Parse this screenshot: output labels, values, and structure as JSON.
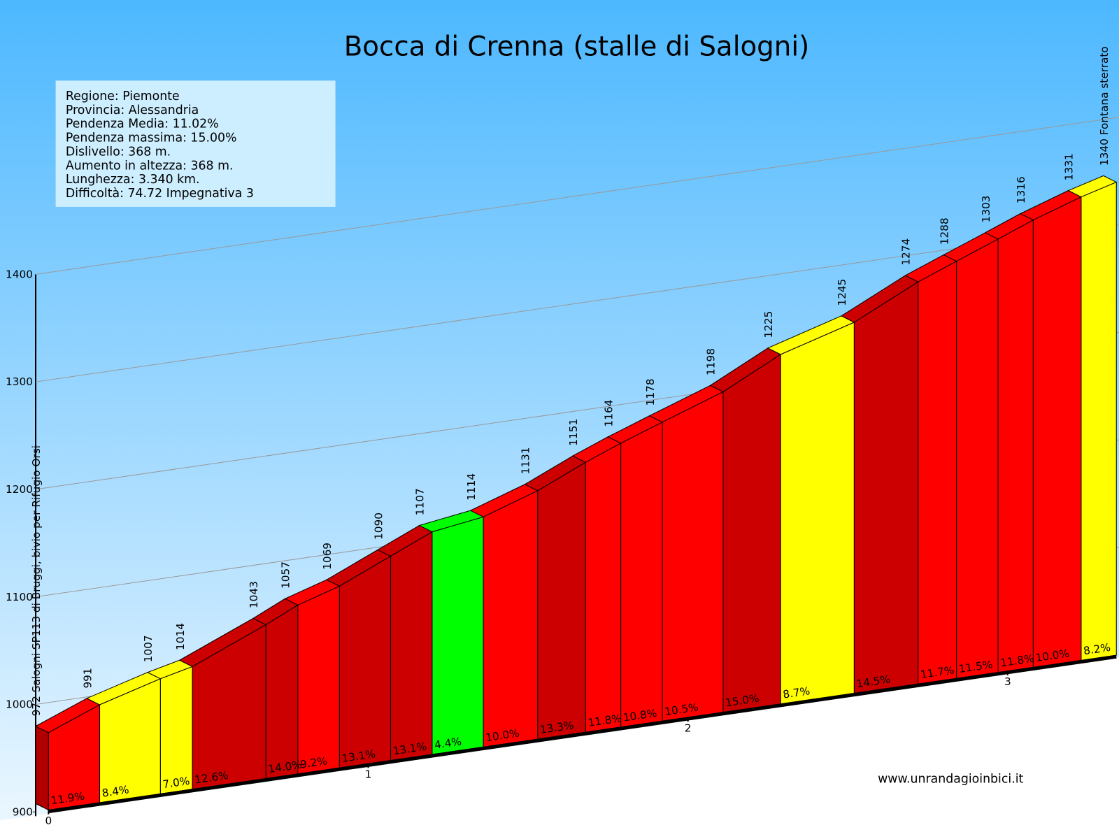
{
  "chart_data": {
    "type": "profile",
    "title": "Bocca di Crenna (stalle di Salogni)",
    "info": [
      "Regione: Piemonte",
      "Provincia: Alessandria",
      "Pendenza Media: 11.02%",
      "Pendenza massima: 15.00%",
      "Dislivello:   368 m.",
      "Aumento in altezza: 368 m.",
      "Lunghezza:  3.340 km.",
      "Difficoltà: 74.72 Impegnativa 3"
    ],
    "credit": "www.unrandagioinbici.it",
    "x": [
      0,
      0.16,
      0.35,
      0.45,
      0.68,
      0.78,
      0.91,
      1.07,
      1.2,
      1.36,
      1.53,
      1.68,
      1.79,
      1.92,
      2.11,
      2.29,
      2.52,
      2.72,
      2.84,
      2.97,
      3.08,
      3.23,
      3.34
    ],
    "values": [
      972,
      991,
      1007,
      1014,
      1043,
      1057,
      1069,
      1090,
      1107,
      1114,
      1131,
      1151,
      1164,
      1178,
      1198,
      1225,
      1245,
      1274,
      1288,
      1303,
      1316,
      1331,
      1340
    ],
    "point_names": [
      "Salogni SP113 di Bruggi, bivio per Rifugio Orsi",
      null,
      null,
      null,
      null,
      null,
      null,
      null,
      null,
      null,
      null,
      null,
      null,
      null,
      null,
      null,
      null,
      null,
      null,
      null,
      null,
      null,
      "Fontana sterrato"
    ],
    "segments": {
      "values": [
        11.9,
        8.4,
        7.0,
        12.6,
        14.0,
        9.2,
        13.1,
        13.1,
        4.4,
        10.0,
        13.3,
        11.8,
        10.8,
        10.5,
        15.0,
        8.7,
        14.5,
        11.7,
        11.5,
        11.8,
        10.0,
        8.2
      ],
      "value_labels": [
        "11.9%",
        "8.4%",
        "7.0%",
        "12.6%",
        "14.0%",
        "9.2%",
        "13.1%",
        "13.1%",
        "4.4%",
        "10.0%",
        "13.3%",
        "11.8%",
        "10.8%",
        "10.5%",
        "15.0%",
        "8.7%",
        "14.5%",
        "11.7%",
        "11.5%",
        "11.8%",
        "10.0%",
        "8.2%"
      ],
      "colors": [
        "#ff0000",
        "#ffff00",
        "#ffff00",
        "#cc0000",
        "#cc0000",
        "#ff0000",
        "#cc0000",
        "#cc0000",
        "#00ff00",
        "#ff0000",
        "#cc0000",
        "#ff0000",
        "#ff0000",
        "#ff0000",
        "#cc0000",
        "#ffff00",
        "#cc0000",
        "#ff0000",
        "#ff0000",
        "#ff0000",
        "#ff0000",
        "#ffff00"
      ]
    },
    "xlim": [
      0,
      3.34
    ],
    "xticks": [
      0,
      1,
      2,
      3
    ],
    "ylim": [
      900,
      1400
    ],
    "yticks": [
      900,
      1000,
      1100,
      1200,
      1300,
      1400
    ],
    "grid": true
  }
}
